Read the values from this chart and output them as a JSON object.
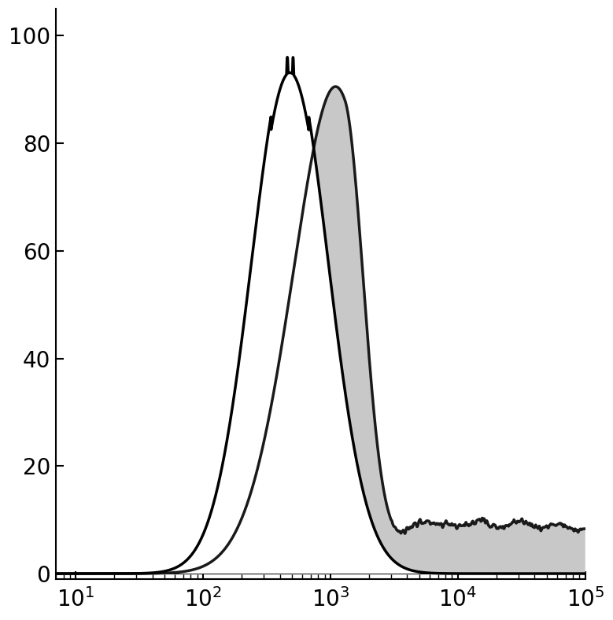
{
  "xlim": [
    7,
    100000
  ],
  "ylim": [
    -1,
    105
  ],
  "yticks": [
    0,
    20,
    40,
    60,
    80,
    100
  ],
  "background_color": "#ffffff",
  "isotype_color": "#000000",
  "isotype_linewidth": 2.5,
  "cd29_fill_color": "#c8c8c8",
  "cd29_edge_color": "#1a1a1a",
  "cd29_linewidth": 2.5,
  "isotype_peak_x": 480,
  "isotype_peak_value": 96,
  "cd29_peak_x": 1300,
  "cd29_peak_value": 100,
  "figsize": [
    7.79,
    7.88
  ],
  "dpi": 100
}
